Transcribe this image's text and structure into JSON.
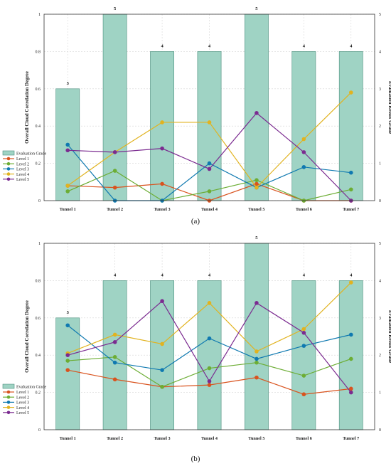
{
  "chart_data": [
    {
      "type": "bar",
      "caption": "(a)",
      "categories": [
        "Tunnel 1",
        "Tunnel 2",
        "Tunnel 3",
        "Tunnel 4",
        "Tunnel 5",
        "Tunnel 6",
        "Tunnel 7"
      ],
      "ylabel": "Overall Cloud Correlation Degree",
      "y2label": "Evaluation Result Grade",
      "ylim": [
        0,
        1
      ],
      "yticks": [
        "0",
        "0.2",
        "0.4",
        "0.6",
        "0.8",
        "1"
      ],
      "y2lim": [
        0,
        5
      ],
      "y2ticks": [
        "0",
        "1",
        "2",
        "3",
        "4",
        "5"
      ],
      "bar_series": {
        "name": "Evaluation Grade",
        "values": [
          3,
          5,
          4,
          4,
          5,
          4,
          4
        ],
        "labels": [
          "3",
          "5",
          "4",
          "4",
          "5",
          "4",
          "4"
        ],
        "color": "#9fd3c4"
      },
      "series": [
        {
          "name": "Level 1",
          "color": "#d9531e",
          "values": [
            0.08,
            0.07,
            0.09,
            0.0,
            0.09,
            0.0,
            0.0
          ]
        },
        {
          "name": "Level 2",
          "color": "#6cad34",
          "values": [
            0.05,
            0.16,
            0.0,
            0.05,
            0.11,
            0.0,
            0.06
          ]
        },
        {
          "name": "Level 3",
          "color": "#0f79b0",
          "values": [
            0.3,
            0.0,
            0.0,
            0.2,
            0.07,
            0.18,
            0.15
          ]
        },
        {
          "name": "Level 4",
          "color": "#e1b320",
          "values": [
            0.08,
            0.26,
            0.42,
            0.42,
            0.07,
            0.33,
            0.58
          ]
        },
        {
          "name": "Level 5",
          "color": "#7b2b90",
          "values": [
            0.27,
            0.26,
            0.28,
            0.17,
            0.47,
            0.26,
            0.0
          ]
        }
      ],
      "grid": true,
      "legend_position": "left"
    },
    {
      "type": "bar",
      "caption": "(b)",
      "categories": [
        "Tunnel 1",
        "Tunnel 2",
        "Tunnel 3",
        "Tunnel 4",
        "Tunnel 5",
        "Tunnel 6",
        "Tunnel 7"
      ],
      "ylabel": "Overall Cloud Correlation Degree",
      "y2label": "Evaluation Result Grade",
      "ylim": [
        0,
        1
      ],
      "yticks": [
        "0",
        "0.2",
        "0.4",
        "0.6",
        "0.8",
        "1"
      ],
      "y2lim": [
        0,
        5
      ],
      "y2ticks": [
        "0",
        "1",
        "2",
        "3",
        "4",
        "5"
      ],
      "bar_series": {
        "name": "Evaluation Grade",
        "values": [
          3,
          4,
          4,
          4,
          5,
          4,
          4
        ],
        "labels": [
          "3",
          "4",
          "4",
          "4",
          "5",
          "4",
          "4"
        ],
        "color": "#9fd3c4"
      },
      "series": [
        {
          "name": "Level 1",
          "color": "#d9531e",
          "values": [
            0.32,
            0.27,
            0.23,
            0.24,
            0.28,
            0.19,
            0.22
          ]
        },
        {
          "name": "Level 2",
          "color": "#6cad34",
          "values": [
            0.37,
            0.39,
            0.23,
            0.33,
            0.36,
            0.29,
            0.38
          ]
        },
        {
          "name": "Level 3",
          "color": "#0f79b0",
          "values": [
            0.56,
            0.36,
            0.32,
            0.49,
            0.38,
            0.45,
            0.51
          ]
        },
        {
          "name": "Level 4",
          "color": "#e1b320",
          "values": [
            0.41,
            0.51,
            0.46,
            0.68,
            0.42,
            0.54,
            0.79
          ]
        },
        {
          "name": "Level 5",
          "color": "#7b2b90",
          "values": [
            0.4,
            0.47,
            0.69,
            0.26,
            0.68,
            0.52,
            0.2
          ]
        }
      ],
      "grid": true,
      "legend_position": "left"
    }
  ]
}
